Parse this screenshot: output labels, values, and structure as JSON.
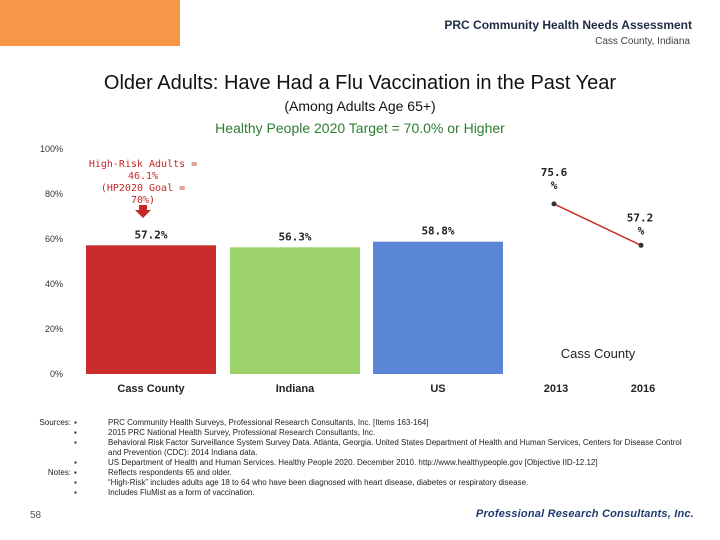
{
  "header": {
    "title": "PRC Community Health Needs Assessment",
    "subtitle": "Cass County, Indiana"
  },
  "chart_data": {
    "type": "bar",
    "title": "Older Adults: Have Had a Flu Vaccination in the Past Year",
    "subtitle": "(Among Adults Age 65+)",
    "target_label": "Healthy People 2020 Target = 70.0% or Higher",
    "ylim": [
      0,
      100
    ],
    "yticks": [
      "0%",
      "20%",
      "40%",
      "60%",
      "80%",
      "100%"
    ],
    "ytick_values": [
      0,
      20,
      40,
      60,
      80,
      100
    ],
    "bars": [
      {
        "category": "Cass County",
        "value": 57.2,
        "label": "57.2%",
        "color": "#ca2c2c"
      },
      {
        "category": "Indiana",
        "value": 56.3,
        "label": "56.3%",
        "color": "#9bd26a"
      },
      {
        "category": "US",
        "value": 58.8,
        "label": "58.8%",
        "color": "#5b85d6"
      }
    ],
    "trend": {
      "group_label": "Cass County",
      "points": [
        {
          "year": "2013",
          "value": 75.6,
          "label": "75.6 %"
        },
        {
          "year": "2016",
          "value": 57.2,
          "label": "57.2 %"
        }
      ]
    },
    "callout": "High-Risk Adults = 46.1% (HP2020 Goal = 70%)"
  },
  "sources_label": "Sources:",
  "sources": [
    "PRC Community Health Surveys, Professional Research Consultants, Inc. [Items 163-164]",
    "2015 PRC National Health Survey, Professional Research Consultants, Inc.",
    "Behavioral Risk Factor Surveillance System Survey Data. Atlanta, Georgia. United States Department of Health and Human Services, Centers for Disease Control and Prevention (CDC): 2014 Indiana data.",
    "US Department of Health and Human Services. Healthy People 2020. December 2010. http://www.healthypeople.gov [Objective IID-12.12]"
  ],
  "notes_label": "Notes:",
  "notes": [
    "Reflects respondents 65 and older.",
    "“High-Risk” includes adults age 18 to 64 who have been diagnosed with heart disease, diabetes or respiratory disease.",
    "Includes FluMist as a form of vaccination."
  ],
  "bullet_glyph": "▪",
  "page_number": "58",
  "footer_logo": "Professional Research Consultants, Inc."
}
